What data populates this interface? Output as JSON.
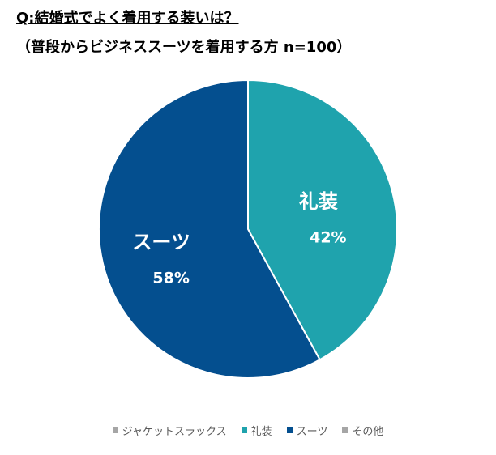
{
  "chart_data": {
    "type": "pie",
    "title": "Q:結婚式でよく着用する装いは？",
    "subtitle": "（普段からビジネススーツを着用する方 n=100）",
    "categories": [
      "ジャケットスラックス",
      "礼装",
      "スーツ",
      "その他"
    ],
    "values": [
      0,
      42,
      58,
      0
    ],
    "value_labels": [
      null,
      "42%",
      "58%",
      null
    ],
    "colors": [
      "#a6a6a6",
      "#1fa3ad",
      "#044f8f",
      "#a6a6a6"
    ]
  }
}
